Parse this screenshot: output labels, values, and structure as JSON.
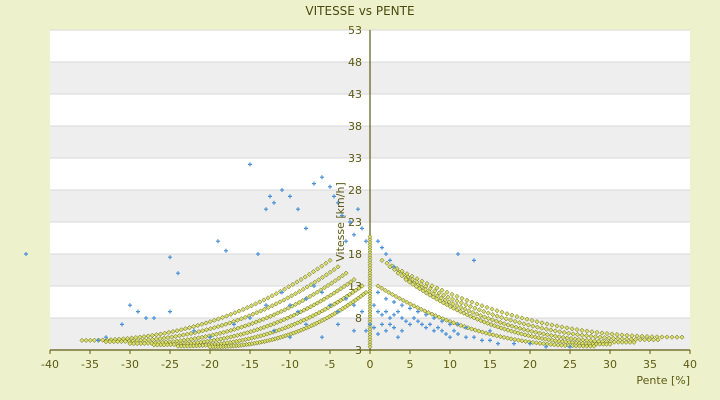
{
  "chart_data": {
    "type": "scatter",
    "title": "VITESSE vs PENTE",
    "xlabel": "Pente [%]",
    "ylabel": "Vitesse [km/h]",
    "xlim": [
      -40,
      40
    ],
    "ylim": [
      3,
      53
    ],
    "x_ticks": [
      -40,
      -35,
      -30,
      -25,
      -20,
      -15,
      -10,
      -5,
      0,
      5,
      10,
      15,
      20,
      25,
      30,
      35,
      40
    ],
    "y_ticks": [
      3,
      8,
      13,
      18,
      23,
      28,
      33,
      38,
      43,
      48,
      53
    ],
    "grid": true,
    "legend": "none",
    "colors": {
      "background": "#eef2cc",
      "plot_band_light": "#ffffff",
      "plot_band_dark": "#eeeeee",
      "axis_line": "#5c5a14",
      "series_measured": "#4a90d9",
      "series_model_fill": "#d8e06a",
      "series_model_edge": "#5a5a10"
    },
    "series": [
      {
        "marker": "plus",
        "color": "#4a90d9",
        "points": [
          [
            -43,
            18
          ],
          [
            -25,
            17.5
          ],
          [
            -24,
            15
          ],
          [
            -19,
            20
          ],
          [
            -18,
            18.5
          ],
          [
            -15,
            32
          ],
          [
            -14,
            18
          ],
          [
            -13,
            25
          ],
          [
            -12.5,
            27
          ],
          [
            -12,
            26
          ],
          [
            -11,
            28
          ],
          [
            -10,
            27
          ],
          [
            -9,
            25
          ],
          [
            -8,
            22
          ],
          [
            -7,
            29
          ],
          [
            -6,
            30
          ],
          [
            -5,
            28.5
          ],
          [
            -4.5,
            27
          ],
          [
            -4,
            26
          ],
          [
            -3.5,
            24
          ],
          [
            -3,
            20
          ],
          [
            -2.5,
            23
          ],
          [
            -2,
            21
          ],
          [
            -1.5,
            25
          ],
          [
            -1,
            22
          ],
          [
            -0.5,
            20
          ],
          [
            -11,
            12
          ],
          [
            -10,
            10
          ],
          [
            -9,
            9
          ],
          [
            -8,
            11
          ],
          [
            -7,
            13
          ],
          [
            -6,
            12
          ],
          [
            -5,
            10
          ],
          [
            -4,
            9
          ],
          [
            -3,
            11
          ],
          [
            -2,
            10
          ],
          [
            -1,
            9
          ],
          [
            -12,
            6
          ],
          [
            -10,
            5
          ],
          [
            -8,
            7
          ],
          [
            -6,
            5
          ],
          [
            -4,
            7
          ],
          [
            -2,
            6
          ],
          [
            -13,
            10
          ],
          [
            -15,
            8
          ],
          [
            -17,
            7
          ],
          [
            -20,
            5
          ],
          [
            -22,
            6
          ],
          [
            -25,
            9
          ],
          [
            -28,
            8
          ],
          [
            -30,
            10
          ],
          [
            0.5,
            10
          ],
          [
            1,
            9
          ],
          [
            1.5,
            8.5
          ],
          [
            2,
            9
          ],
          [
            2.5,
            8
          ],
          [
            3,
            8.5
          ],
          [
            3.5,
            9
          ],
          [
            4,
            8
          ],
          [
            4.5,
            7.5
          ],
          [
            5,
            7
          ],
          [
            5.5,
            8
          ],
          [
            6,
            7.5
          ],
          [
            6.5,
            7
          ],
          [
            7,
            6.5
          ],
          [
            7.5,
            7
          ],
          [
            8,
            6
          ],
          [
            8.5,
            6.5
          ],
          [
            9,
            6
          ],
          [
            9.5,
            5.5
          ],
          [
            10,
            5
          ],
          [
            10.5,
            6
          ],
          [
            11,
            5.5
          ],
          [
            12,
            5
          ],
          [
            13,
            5
          ],
          [
            14,
            4.5
          ],
          [
            15,
            4.5
          ],
          [
            16,
            4
          ],
          [
            18,
            4
          ],
          [
            20,
            4
          ],
          [
            22,
            3.5
          ],
          [
            25,
            3.5
          ],
          [
            1,
            20
          ],
          [
            1.5,
            19
          ],
          [
            2,
            18
          ],
          [
            2.5,
            17
          ],
          [
            3,
            16
          ],
          [
            11,
            18
          ],
          [
            13,
            17
          ],
          [
            1,
            12
          ],
          [
            2,
            11
          ],
          [
            3,
            10.5
          ],
          [
            4,
            10
          ],
          [
            5,
            9.5
          ],
          [
            6,
            9
          ],
          [
            7,
            8.5
          ],
          [
            8,
            8
          ],
          [
            9,
            7.5
          ],
          [
            10,
            7
          ],
          [
            11,
            7
          ],
          [
            12,
            6.5
          ],
          [
            15,
            6
          ],
          [
            -0.5,
            6
          ],
          [
            0,
            7
          ],
          [
            0.5,
            6.5
          ],
          [
            1,
            5.5
          ],
          [
            1.5,
            7
          ],
          [
            2,
            6
          ],
          [
            2.5,
            7
          ],
          [
            3,
            6.5
          ],
          [
            3.5,
            5
          ],
          [
            4,
            6
          ],
          [
            -27,
            8
          ],
          [
            -29,
            9
          ],
          [
            -33,
            5
          ],
          [
            -34,
            4.5
          ],
          [
            -31,
            7
          ]
        ]
      },
      {
        "marker": "diamond",
        "color": "#d8e06a",
        "curves": [
          {
            "side": "left",
            "peak_x": -5,
            "peak_y": 17,
            "end_x": -36,
            "end_y": 4.5
          },
          {
            "side": "left",
            "peak_x": -4,
            "peak_y": 16,
            "end_x": -33,
            "end_y": 4.3
          },
          {
            "side": "left",
            "peak_x": -3,
            "peak_y": 15,
            "end_x": -30,
            "end_y": 4.0
          },
          {
            "side": "left",
            "peak_x": -2,
            "peak_y": 14,
            "end_x": -27,
            "end_y": 3.8
          },
          {
            "side": "left",
            "peak_x": -1,
            "peak_y": 13,
            "end_x": -24,
            "end_y": 3.6
          },
          {
            "side": "left",
            "peak_x": -0.5,
            "peak_y": 12,
            "end_x": -20,
            "end_y": 3.5
          },
          {
            "side": "right",
            "peak_x": 1.5,
            "peak_y": 17,
            "end_x": 39,
            "end_y": 5.0
          },
          {
            "side": "right",
            "peak_x": 2.5,
            "peak_y": 16,
            "end_x": 36,
            "end_y": 4.6
          },
          {
            "side": "right",
            "peak_x": 3.5,
            "peak_y": 15,
            "end_x": 33,
            "end_y": 4.2
          },
          {
            "side": "right",
            "peak_x": 4.5,
            "peak_y": 14,
            "end_x": 30,
            "end_y": 3.9
          },
          {
            "side": "right",
            "peak_x": 1,
            "peak_y": 13,
            "end_x": 28,
            "end_y": 3.6
          }
        ]
      }
    ]
  }
}
